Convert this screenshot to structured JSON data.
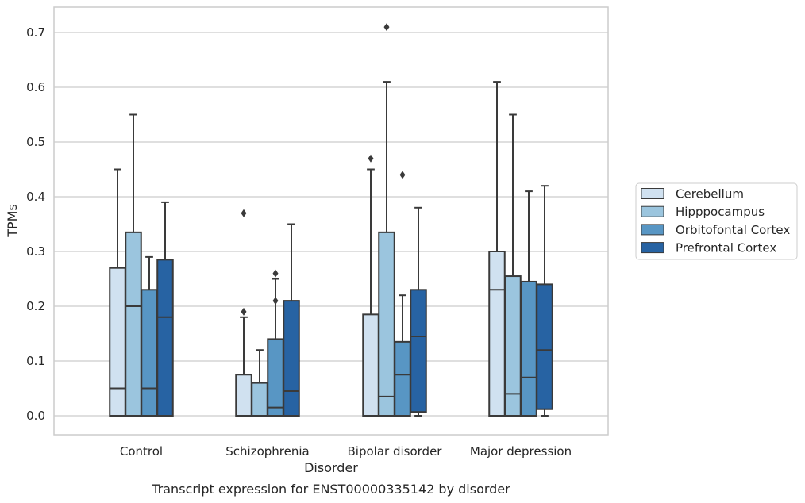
{
  "chart_data": {
    "type": "box",
    "xlabel": "Disorder",
    "ylabel": "TPMs",
    "caption": "Transcript expression for ENST00000335142 by disorder",
    "categories": [
      "Control",
      "Schizophrenia",
      "Bipolar disorder",
      "Major depression"
    ],
    "ylim": [
      -0.035,
      0.745
    ],
    "yticks": [
      "0.0",
      "0.1",
      "0.2",
      "0.3",
      "0.4",
      "0.5",
      "0.6",
      "0.7"
    ],
    "ytick_values": [
      0.0,
      0.1,
      0.2,
      0.3,
      0.4,
      0.5,
      0.6,
      0.7
    ],
    "grid": "horizontal",
    "legend_position": "right",
    "series": [
      {
        "name": "Cerebellum",
        "color": "#d0e1f0",
        "boxes": [
          {
            "whisker_low": 0.0,
            "q1": 0.0,
            "median": 0.05,
            "q3": 0.27,
            "whisker_high": 0.45,
            "outliers": []
          },
          {
            "whisker_low": 0.0,
            "q1": 0.0,
            "median": 0.0,
            "q3": 0.075,
            "whisker_high": 0.18,
            "outliers": [
              0.19,
              0.37
            ]
          },
          {
            "whisker_low": 0.0,
            "q1": 0.0,
            "median": 0.0,
            "q3": 0.185,
            "whisker_high": 0.45,
            "outliers": [
              0.47
            ]
          },
          {
            "whisker_low": 0.0,
            "q1": 0.0,
            "median": 0.23,
            "q3": 0.3,
            "whisker_high": 0.61,
            "outliers": []
          }
        ]
      },
      {
        "name": "Hipppocampus",
        "color": "#9bc5de",
        "boxes": [
          {
            "whisker_low": 0.0,
            "q1": 0.0,
            "median": 0.2,
            "q3": 0.335,
            "whisker_high": 0.55,
            "outliers": []
          },
          {
            "whisker_low": 0.0,
            "q1": 0.0,
            "median": 0.0,
            "q3": 0.06,
            "whisker_high": 0.12,
            "outliers": []
          },
          {
            "whisker_low": 0.0,
            "q1": 0.0,
            "median": 0.035,
            "q3": 0.335,
            "whisker_high": 0.61,
            "outliers": [
              0.71
            ]
          },
          {
            "whisker_low": 0.0,
            "q1": 0.0,
            "median": 0.04,
            "q3": 0.255,
            "whisker_high": 0.55,
            "outliers": []
          }
        ]
      },
      {
        "name": "Orbitofontal Cortex",
        "color": "#5896c4",
        "boxes": [
          {
            "whisker_low": 0.0,
            "q1": 0.0,
            "median": 0.05,
            "q3": 0.23,
            "whisker_high": 0.29,
            "outliers": []
          },
          {
            "whisker_low": 0.0,
            "q1": 0.0,
            "median": 0.015,
            "q3": 0.14,
            "whisker_high": 0.25,
            "outliers": [
              0.21,
              0.26
            ]
          },
          {
            "whisker_low": 0.0,
            "q1": 0.0,
            "median": 0.075,
            "q3": 0.135,
            "whisker_high": 0.22,
            "outliers": [
              0.44
            ]
          },
          {
            "whisker_low": 0.0,
            "q1": 0.0,
            "median": 0.07,
            "q3": 0.245,
            "whisker_high": 0.41,
            "outliers": []
          }
        ]
      },
      {
        "name": "Prefrontal Cortex",
        "color": "#2763a3",
        "boxes": [
          {
            "whisker_low": 0.0,
            "q1": 0.0,
            "median": 0.18,
            "q3": 0.285,
            "whisker_high": 0.39,
            "outliers": []
          },
          {
            "whisker_low": 0.0,
            "q1": 0.0,
            "median": 0.045,
            "q3": 0.21,
            "whisker_high": 0.35,
            "outliers": []
          },
          {
            "whisker_low": 0.0,
            "q1": 0.007,
            "median": 0.145,
            "q3": 0.23,
            "whisker_high": 0.38,
            "outliers": []
          },
          {
            "whisker_low": 0.0,
            "q1": 0.012,
            "median": 0.12,
            "q3": 0.24,
            "whisker_high": 0.42,
            "outliers": []
          }
        ]
      }
    ]
  }
}
